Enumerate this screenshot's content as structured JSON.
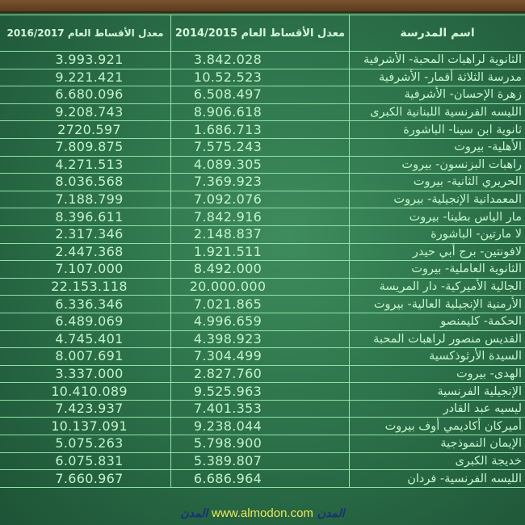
{
  "header": {
    "name": "اسم المدرسة",
    "avg_2014": "معدل الأقساط العام  2014/2015",
    "avg_2016": "معدل الأقساط العام 2016/2017"
  },
  "rows": [
    {
      "name": "الثانوية لراهبات المحبة- الأشرفية",
      "v2014": "3.842.028",
      "v2016": "3.993.921"
    },
    {
      "name": "مدرسة الثلاثة أقمار- الأشرفية",
      "v2014": "10.52.523",
      "v2016": "9.221.421"
    },
    {
      "name": "زهرة الإحسان- الأشرفية",
      "v2014": "6.508.497",
      "v2016": "6.680.096"
    },
    {
      "name": "الليسه الفرنسية اللبنانية الكبرى",
      "v2014": "8.906.618",
      "v2016": "9.208.743"
    },
    {
      "name": "ثانوية ابن سينا- الباشورة",
      "v2014": "1.686.713",
      "v2016": "2720.597"
    },
    {
      "name": "الأهلية- بيروت",
      "v2014": "7.575.243",
      "v2016": "7.809.875"
    },
    {
      "name": "راهبات البزنسون- بيروت",
      "v2014": "4.089.305",
      "v2016": "4.271.513"
    },
    {
      "name": "الحريري الثانية- بيروت",
      "v2014": "7.369.923",
      "v2016": "8.036.568"
    },
    {
      "name": "المعمدانية الإنجيلية- بيروت",
      "v2014": "7.092.076",
      "v2016": "7.188.799"
    },
    {
      "name": "مار الياس بطينا- بيروت",
      "v2014": "7.842.916",
      "v2016": "8.396.611"
    },
    {
      "name": "لا مارتين- الباشورة",
      "v2014": "2.148.837",
      "v2016": "2.317.346"
    },
    {
      "name": "لافونتين- برج أبي حيدر",
      "v2014": "1.921.511",
      "v2016": "2.447.368"
    },
    {
      "name": "الثانوية العاملية- بيروت",
      "v2014": "8.492.000",
      "v2016": "7.107.000"
    },
    {
      "name": "الجالية الأميركية- دار المريسة",
      "v2014": "20.000.000",
      "v2016": "22.153.118"
    },
    {
      "name": "الأرمنية الإنجيلية العالية- بيروت",
      "v2014": "7.021.865",
      "v2016": "6.336.346"
    },
    {
      "name": "الحكمة- كليمنصو",
      "v2014": "4.996.659",
      "v2016": "6.489.069"
    },
    {
      "name": "القديس منصور لراهبات المحبة",
      "v2014": "4.398.923",
      "v2016": "4.745.401"
    },
    {
      "name": "السيدة الأرثوذكسية",
      "v2014": "7.304.499",
      "v2016": "8.007.691"
    },
    {
      "name": "الهدى- بيروت",
      "v2014": "2.827.760",
      "v2016": "3.337.000"
    },
    {
      "name": "الإنجيلية الفرنسية",
      "v2014": "9.525.963",
      "v2016": "10.410.089"
    },
    {
      "name": "ليسيه عبد القادر",
      "v2014": "7.401.353",
      "v2016": "7.423.937"
    },
    {
      "name": "أميركان أكاديمي أوف بيروت",
      "v2014": "9.238.044",
      "v2016": "10.137.091"
    },
    {
      "name": "الإيمان النموذجية",
      "v2014": "5.798.900",
      "v2016": "5.075.263"
    },
    {
      "name": "خديجة الكبرى",
      "v2014": "5.389.807",
      "v2016": "6.075.831"
    },
    {
      "name": "الليسه الفرنسية- فردان",
      "v2014": "6.686.964",
      "v2016": "7.660.967"
    }
  ],
  "footer": {
    "logo": "المدن",
    "url": "www.almodon.com"
  },
  "colors": {
    "board": "#2d734b",
    "text": "#c4f5cc",
    "lines": "#8fe3a6",
    "url": "#f2e65a",
    "logo": "#1b2f7a",
    "frame": "#6b4626"
  }
}
